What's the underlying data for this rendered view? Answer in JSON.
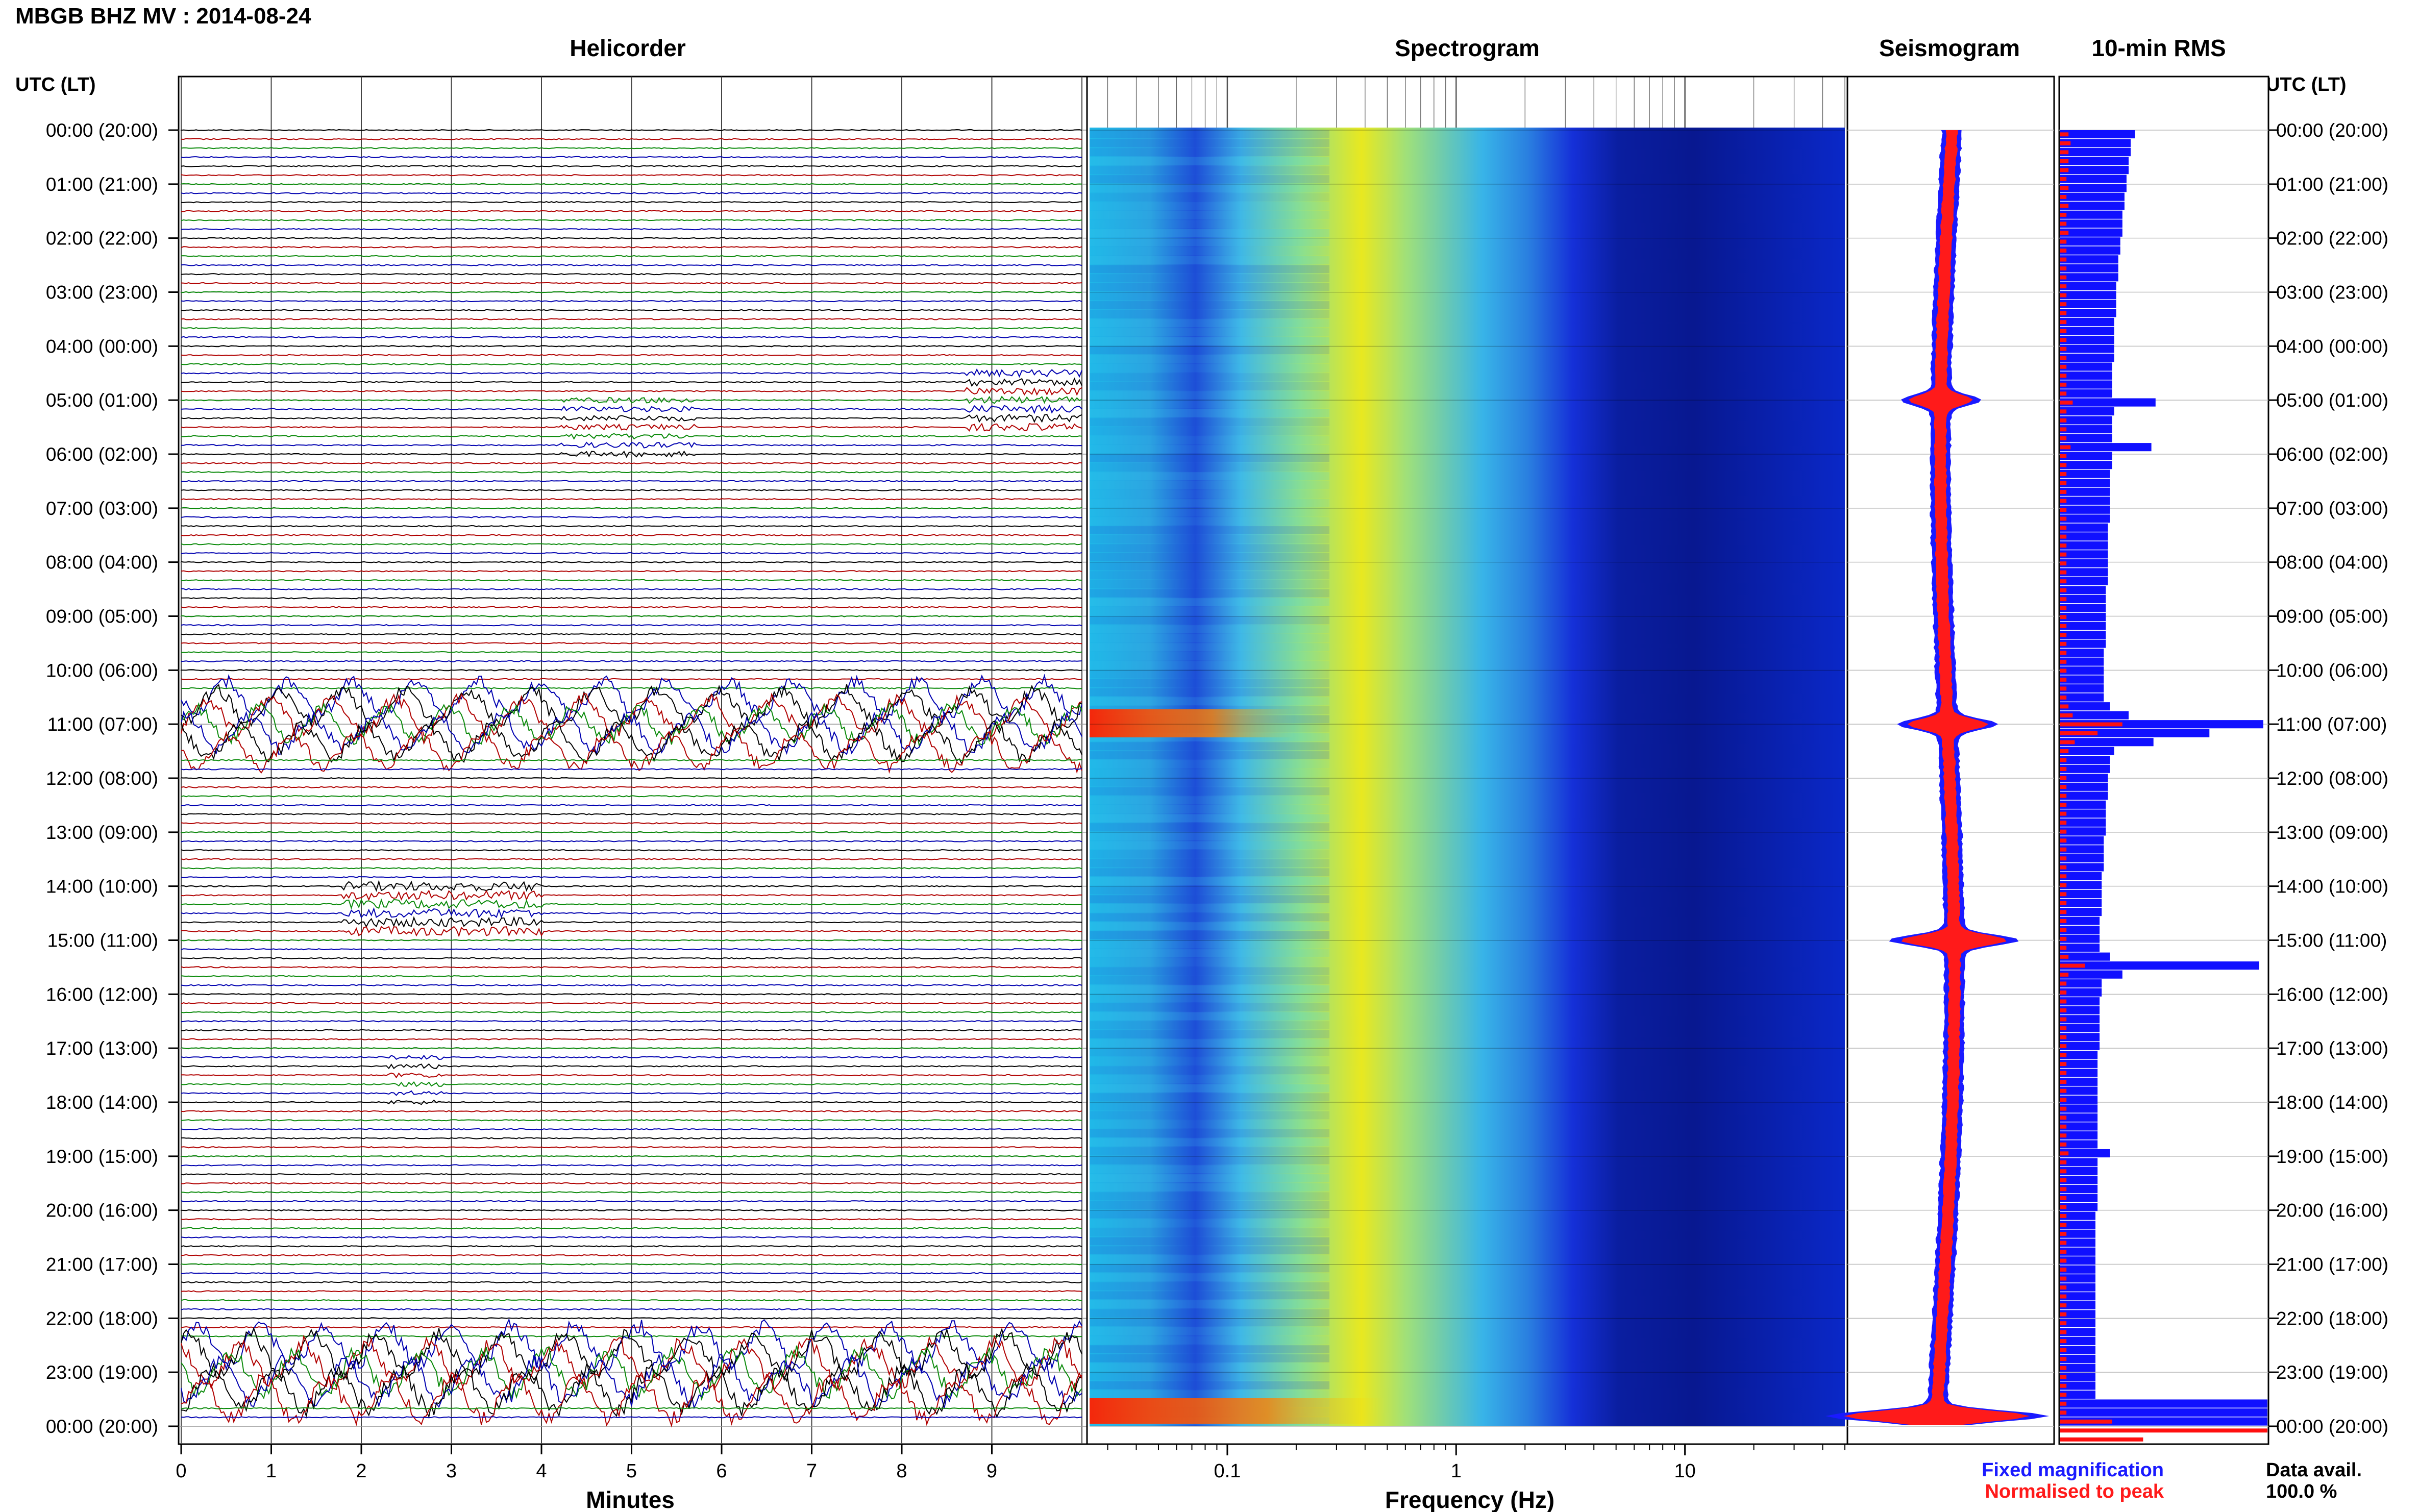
{
  "header": {
    "station_title": "MBGB BHZ MV : 2014-08-24"
  },
  "panels": {
    "helicorder": "Helicorder",
    "spectrogram": "Spectrogram",
    "seismogram": "Seismogram",
    "rms": "10-min RMS"
  },
  "axes": {
    "time_label_left": "UTC (LT)",
    "time_label_right": "UTC (LT)",
    "minutes_label": "Minutes",
    "frequency_label": "Frequency (Hz)"
  },
  "legend": {
    "fixed": "Fixed magnification",
    "normalised": "Normalised to peak",
    "fixed_color": "#1a1aff",
    "normalised_color": "#ff1a1a"
  },
  "availability": {
    "label": "Data avail.",
    "value": "100.0 %"
  },
  "colors": {
    "trace_colors": [
      "#000000",
      "#b00000",
      "#0a8a0a",
      "#0000b0"
    ],
    "rms_fixed": "#1010ff",
    "rms_norm": "#ff1010"
  },
  "chart_data": {
    "type": "helicorder",
    "hour_labels": [
      "00:00 (20:00)",
      "01:00 (21:00)",
      "02:00 (22:00)",
      "03:00 (23:00)",
      "04:00 (00:00)",
      "05:00 (01:00)",
      "06:00 (02:00)",
      "07:00 (03:00)",
      "08:00 (04:00)",
      "09:00 (05:00)",
      "10:00 (06:00)",
      "11:00 (07:00)",
      "12:00 (08:00)",
      "13:00 (09:00)",
      "14:00 (10:00)",
      "15:00 (11:00)",
      "16:00 (12:00)",
      "17:00 (13:00)",
      "18:00 (14:00)",
      "19:00 (15:00)",
      "20:00 (16:00)",
      "21:00 (17:00)",
      "22:00 (18:00)",
      "23:00 (19:00)",
      "00:00 (20:00)"
    ],
    "minute_ticks": [
      "0",
      "1",
      "2",
      "3",
      "4",
      "5",
      "6",
      "7",
      "8",
      "9"
    ],
    "frequency_ticks": [
      "0.1",
      "1",
      "10"
    ],
    "frequency_range_hz": [
      0.025,
      50
    ],
    "traces_per_hour": 6,
    "rms_fixed": [
      0.36,
      0.34,
      0.34,
      0.33,
      0.33,
      0.32,
      0.32,
      0.31,
      0.31,
      0.3,
      0.3,
      0.3,
      0.29,
      0.29,
      0.28,
      0.28,
      0.28,
      0.27,
      0.27,
      0.27,
      0.27,
      0.26,
      0.26,
      0.26,
      0.26,
      0.26,
      0.25,
      0.25,
      0.25,
      0.25,
      0.46,
      0.26,
      0.25,
      0.25,
      0.25,
      0.44,
      0.25,
      0.25,
      0.24,
      0.24,
      0.24,
      0.24,
      0.24,
      0.24,
      0.23,
      0.23,
      0.23,
      0.23,
      0.23,
      0.23,
      0.23,
      0.22,
      0.22,
      0.22,
      0.22,
      0.22,
      0.22,
      0.22,
      0.21,
      0.21,
      0.21,
      0.21,
      0.21,
      0.21,
      0.24,
      0.33,
      0.98,
      0.72,
      0.45,
      0.26,
      0.24,
      0.24,
      0.23,
      0.23,
      0.23,
      0.22,
      0.22,
      0.22,
      0.22,
      0.21,
      0.21,
      0.21,
      0.21,
      0.2,
      0.2,
      0.2,
      0.2,
      0.2,
      0.19,
      0.19,
      0.19,
      0.19,
      0.24,
      0.96,
      0.3,
      0.2,
      0.2,
      0.19,
      0.19,
      0.19,
      0.19,
      0.19,
      0.19,
      0.18,
      0.18,
      0.18,
      0.18,
      0.18,
      0.18,
      0.18,
      0.18,
      0.18,
      0.18,
      0.18,
      0.24,
      0.18,
      0.18,
      0.18,
      0.18,
      0.18,
      0.18,
      0.17,
      0.17,
      0.17,
      0.17,
      0.17,
      0.17,
      0.17,
      0.17,
      0.17,
      0.17,
      0.17,
      0.17,
      0.17,
      0.17,
      0.17,
      0.17,
      0.17,
      0.17,
      0.17,
      0.17,
      0.17,
      1.0,
      1.0,
      1.0
    ],
    "rms_normalised": [
      0.04,
      0.05,
      0.04,
      0.04,
      0.04,
      0.03,
      0.04,
      0.03,
      0.04,
      0.03,
      0.03,
      0.04,
      0.03,
      0.03,
      0.03,
      0.03,
      0.03,
      0.03,
      0.03,
      0.03,
      0.03,
      0.03,
      0.03,
      0.03,
      0.03,
      0.03,
      0.03,
      0.03,
      0.03,
      0.03,
      0.06,
      0.03,
      0.03,
      0.03,
      0.03,
      0.05,
      0.03,
      0.03,
      0.03,
      0.03,
      0.03,
      0.03,
      0.03,
      0.03,
      0.03,
      0.03,
      0.03,
      0.03,
      0.03,
      0.03,
      0.03,
      0.03,
      0.03,
      0.03,
      0.03,
      0.03,
      0.03,
      0.03,
      0.03,
      0.03,
      0.03,
      0.03,
      0.03,
      0.03,
      0.04,
      0.06,
      0.3,
      0.18,
      0.07,
      0.04,
      0.03,
      0.03,
      0.03,
      0.03,
      0.03,
      0.03,
      0.03,
      0.03,
      0.03,
      0.03,
      0.03,
      0.03,
      0.03,
      0.03,
      0.03,
      0.03,
      0.03,
      0.03,
      0.03,
      0.03,
      0.03,
      0.03,
      0.04,
      0.12,
      0.04,
      0.03,
      0.03,
      0.03,
      0.03,
      0.03,
      0.03,
      0.03,
      0.03,
      0.03,
      0.03,
      0.03,
      0.03,
      0.03,
      0.03,
      0.03,
      0.03,
      0.03,
      0.03,
      0.03,
      0.04,
      0.03,
      0.03,
      0.03,
      0.03,
      0.03,
      0.03,
      0.03,
      0.03,
      0.03,
      0.03,
      0.03,
      0.03,
      0.03,
      0.03,
      0.03,
      0.03,
      0.03,
      0.03,
      0.03,
      0.03,
      0.03,
      0.03,
      0.03,
      0.03,
      0.03,
      0.03,
      0.03,
      0.03,
      0.03,
      0.25,
      1.0,
      0.4
    ],
    "events": [
      {
        "hour": 5,
        "minute_start": 8.7,
        "minute_end": 10.0,
        "amp": 1.6
      },
      {
        "hour": 5.5,
        "minute_start": 4.2,
        "minute_end": 5.7,
        "amp": 1.2
      },
      {
        "hour": 11,
        "minute_start": 0.0,
        "minute_end": 10.0,
        "amp": 2.6
      },
      {
        "hour": 14.4,
        "minute_start": 1.8,
        "minute_end": 4.0,
        "amp": 2.0
      },
      {
        "hour": 17.6,
        "minute_start": 2.3,
        "minute_end": 2.9,
        "amp": 1.0
      },
      {
        "hour": 23,
        "minute_start": 0.0,
        "minute_end": 10.0,
        "amp": 3.2
      }
    ]
  }
}
